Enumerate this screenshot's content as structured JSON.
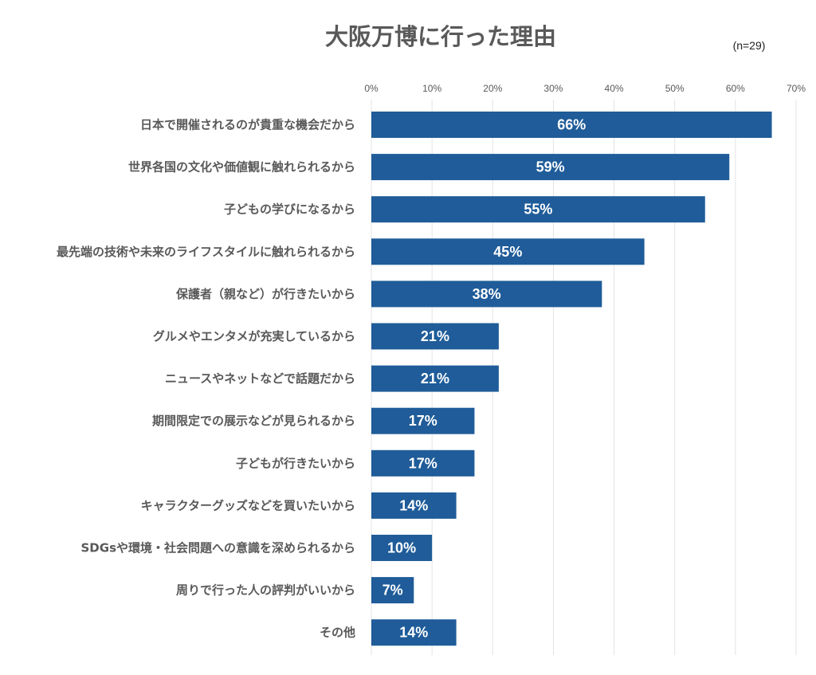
{
  "chart_data": {
    "type": "bar",
    "orientation": "horizontal",
    "title": "大阪万博に行った理由",
    "note": "(n=29)",
    "unit": "%",
    "xlim": [
      0,
      70
    ],
    "ticks": [
      0,
      10,
      20,
      30,
      40,
      50,
      60,
      70
    ],
    "grid": true,
    "bar_color": "#1f5c99",
    "categories": [
      "日本で開催されるのが貴重な機会だから",
      "世界各国の文化や価値観に触れられるから",
      "子どもの学びになるから",
      "最先端の技術や未来のライフスタイルに触れられるから",
      "保護者（親など）が行きたいから",
      "グルメやエンタメが充実しているから",
      "ニュースやネットなどで話題だから",
      "期間限定での展示などが見られるから",
      "子どもが行きたいから",
      "キャラクターグッズなどを買いたいから",
      "SDGsや環境・社会問題への意識を深められるから",
      "周りで行った人の評判がいいから",
      "その他"
    ],
    "values": [
      66,
      59,
      55,
      45,
      38,
      21,
      21,
      17,
      17,
      14,
      10,
      7,
      14
    ]
  }
}
